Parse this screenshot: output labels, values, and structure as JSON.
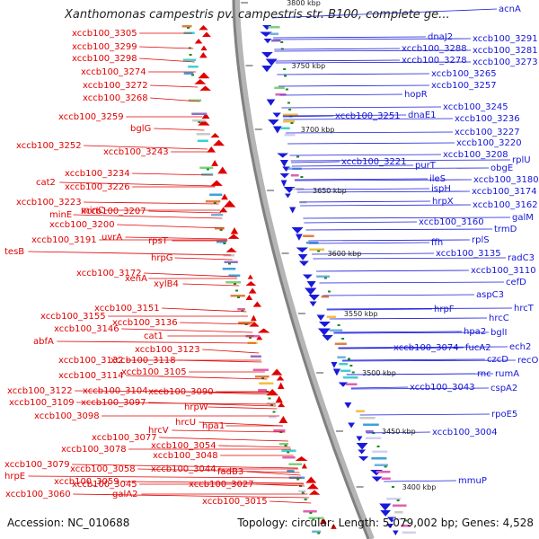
{
  "title": "Xanthomonas campestris pv. campestris str. B100, complete ge...",
  "footer": {
    "accession": "Accession: NC_010688",
    "summary": "Topology: circular; Length: 5,079,002 bp; Genes: 4,528"
  },
  "colors": {
    "forward_strand": "#e00000",
    "reverse_strand": "#1a1adb",
    "backbone": "#808080",
    "gc_tick": "#1a8a1a"
  },
  "kbp_ticks": [
    "3800 kbp",
    "3750 kbp",
    "3700 kbp",
    "3650 kbp",
    "3600 kbp",
    "3550 kbp",
    "3500 kbp",
    "3450 kbp",
    "3400 kbp"
  ],
  "labels_left": [
    "xccb100_3305",
    "xccb100_3299",
    "xccb100_3298",
    "xccb100_3274",
    "xccb100_3272",
    "xccb100_3268",
    "xccb100_3259",
    "bglG",
    "xccb100_3252",
    "xccb100_3243",
    "xccb100_3234",
    "cat2",
    "xccb100_3226",
    "xccb100_3223",
    "minE",
    "minC",
    "xccb100_3207",
    "xccb100_3200",
    "xccb100_3191",
    "uvrA",
    "tesB",
    "rpsT",
    "hrpG",
    "xccb100_3172",
    "xenA",
    "xylB4",
    "xccb100_3151",
    "xccb100_3155",
    "xccb100_3136",
    "xccb100_3146",
    "cat1",
    "abfA",
    "xccb100_3123",
    "xccb100_3132",
    "xccb100_3118",
    "xccb100_3114",
    "xccb100_3105",
    "xccb100_3122",
    "xccb100_3104",
    "xccb100_3090",
    "xccb100_3109",
    "xccb100_3097",
    "xccb100_3098",
    "hrpW",
    "hrcU",
    "hpa1",
    "hrcV",
    "xccb100_3077",
    "xccb100_3078",
    "xccb100_3054",
    "xccb100_3079",
    "xccb100_3048",
    "hrpE",
    "xccb100_3058",
    "xccb100_3044",
    "xccb100_3059",
    "fadB3",
    "xccb100_3045",
    "xccb100_3027",
    "xccb100_3060",
    "galA2",
    "xccb100_3015"
  ],
  "labels_right": [
    "acnA",
    "dnaJ2",
    "xccb100_3291",
    "xccb100_3288",
    "xccb100_3281",
    "xccb100_3278",
    "xccb100_3273",
    "xccb100_3265",
    "xccb100_3257",
    "hopR",
    "xccb100_3245",
    "xccb100_3251",
    "dnaE1",
    "xccb100_3236",
    "xccb100_3227",
    "xccb100_3220",
    "xccb100_3208",
    "rplU",
    "xccb100_3221",
    "purT",
    "obgE",
    "ileS",
    "xccb100_3180",
    "ispH",
    "xccb100_3174",
    "hrpX",
    "xccb100_3162",
    "xccb100_3160",
    "galM",
    "trmD",
    "ffh",
    "rplS",
    "xccb100_3135",
    "radC3",
    "xccb100_3110",
    "cefD",
    "aspC3",
    "hrcT",
    "hrpF",
    "hrcC",
    "hpa2",
    "bglI",
    "xccb100_3074",
    "fucA2",
    "ech2",
    "czcD",
    "recO",
    "rnc",
    "rumA",
    "xccb100_3043",
    "cspA2",
    "rpoE5",
    "xccb100_3004",
    "mmuP"
  ]
}
